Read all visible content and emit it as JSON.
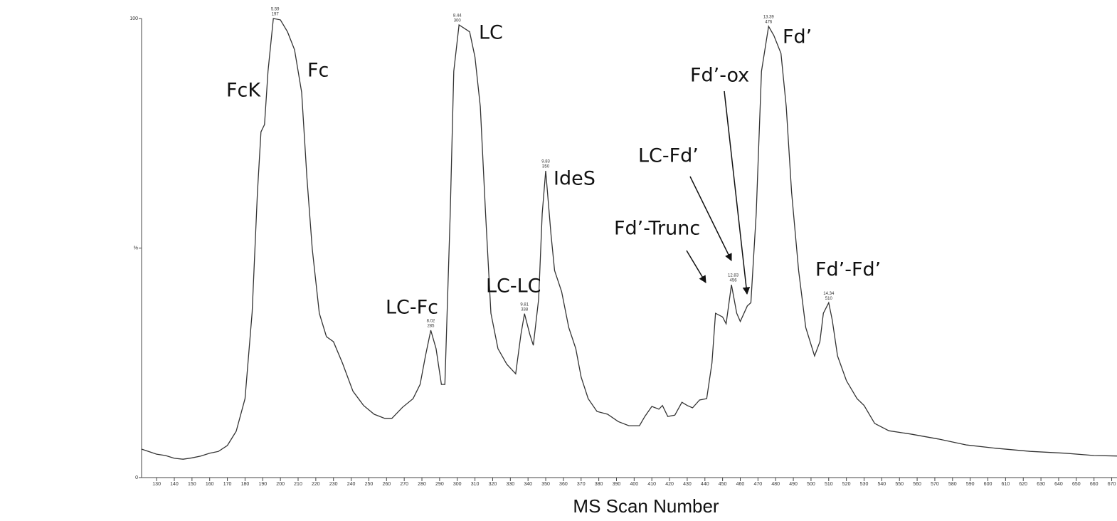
{
  "chart_data": {
    "type": "line",
    "x_label": "MS Scan Number",
    "xlim": [
      121.5,
      673
    ],
    "ylim": [
      0,
      100
    ],
    "xticks": [
      130,
      140,
      150,
      160,
      170,
      180,
      190,
      200,
      210,
      220,
      230,
      240,
      250,
      260,
      270,
      280,
      290,
      300,
      310,
      320,
      330,
      340,
      350,
      360,
      370,
      380,
      390,
      400,
      410,
      420,
      430,
      440,
      450,
      460,
      470,
      480,
      490,
      500,
      510,
      520,
      530,
      540,
      550,
      560,
      570,
      580,
      590,
      600,
      610,
      620,
      630,
      640,
      650,
      660,
      670
    ],
    "yticks": [
      0,
      {
        "value": 50,
        "label": "%"
      },
      100
    ],
    "color": "#333333",
    "x": [
      121.5,
      130,
      135,
      140,
      145,
      150,
      155,
      160,
      165,
      170,
      175,
      180,
      184,
      187,
      189,
      191,
      193,
      196,
      200,
      204,
      208,
      212,
      215,
      218,
      222,
      226,
      230,
      235,
      241,
      247,
      253,
      259,
      263,
      269,
      275,
      279,
      282,
      285,
      288,
      291,
      293,
      296,
      298,
      301,
      307,
      310,
      313,
      316,
      319,
      323,
      328,
      333,
      336,
      338,
      341,
      343,
      346,
      348,
      350,
      353,
      355,
      359,
      363,
      367,
      370,
      374,
      379,
      385,
      391,
      397,
      403,
      406,
      410,
      414,
      416,
      419,
      423,
      427,
      430,
      433,
      437,
      441,
      444,
      446,
      450,
      452,
      455,
      458,
      460,
      464,
      466,
      469,
      472,
      476,
      479,
      483,
      486,
      489,
      493,
      497,
      502,
      505,
      507,
      510,
      512,
      515,
      520,
      526,
      530,
      536,
      544,
      556,
      572,
      588,
      604,
      624,
      644,
      660,
      673
    ],
    "values": [
      6.2,
      5.1,
      4.8,
      4.2,
      4.0,
      4.3,
      4.7,
      5.3,
      5.7,
      7.0,
      10.1,
      17.2,
      36.0,
      62.0,
      75.3,
      76.9,
      88.5,
      100,
      99.7,
      97.1,
      93.2,
      83.9,
      65.3,
      49.8,
      35.8,
      30.7,
      29.6,
      25.0,
      18.8,
      15.7,
      13.8,
      12.9,
      12.9,
      15.3,
      17.2,
      20.3,
      26.5,
      32.1,
      28.1,
      20.3,
      20.3,
      57.5,
      88.5,
      98.6,
      97.1,
      91.6,
      80.8,
      57.5,
      35.8,
      28.1,
      24.7,
      22.6,
      31.2,
      35.7,
      31.2,
      28.8,
      38.9,
      57.5,
      66.8,
      52.9,
      45.1,
      40.5,
      32.7,
      28.1,
      21.9,
      17.2,
      14.4,
      13.8,
      12.2,
      11.3,
      11.3,
      13.3,
      15.5,
      14.9,
      15.7,
      13.3,
      13.6,
      16.4,
      15.7,
      15.2,
      16.9,
      17.2,
      25.0,
      35.8,
      35.0,
      33.5,
      42.0,
      35.8,
      34.0,
      37.4,
      38.1,
      57.5,
      88.5,
      98.3,
      96.3,
      92.4,
      80.8,
      62.2,
      45.1,
      32.7,
      26.5,
      29.6,
      35.8,
      38.1,
      34.3,
      26.5,
      21.1,
      17.2,
      15.7,
      11.8,
      10.2,
      9.5,
      8.4,
      7.1,
      6.4,
      5.7,
      5.3,
      4.8,
      4.7
    ],
    "peaks": [
      {
        "rt": 5.59,
        "scan": 197
      },
      {
        "rt": 8.02,
        "scan": 285
      },
      {
        "rt": 8.44,
        "scan": 300
      },
      {
        "rt": 9.81,
        "scan": 338
      },
      {
        "rt": 9.83,
        "scan": 350
      },
      {
        "rt": 12.83,
        "scan": 456
      },
      {
        "rt": 13.39,
        "scan": 476
      },
      {
        "rt": 14.34,
        "scan": 510
      }
    ],
    "annotations": [
      "FcK",
      "Fc",
      "LC",
      "LC-Fc",
      "LC-LC",
      "IdeS",
      "LC-Fd’",
      "Fd’-Trunc",
      "Fd’-ox",
      "Fd’",
      "Fd’-Fd’"
    ]
  }
}
